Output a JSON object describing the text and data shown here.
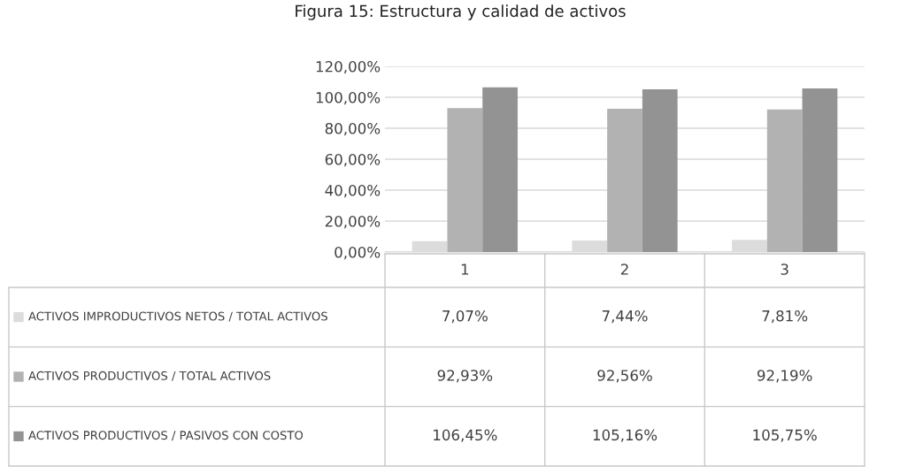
{
  "chart_data": {
    "type": "bar",
    "title": "Figura 15: Estructura y calidad de activos",
    "categories": [
      "1",
      "2",
      "3"
    ],
    "series": [
      {
        "name": "ACTIVOS IMPRODUCTIVOS NETOS / TOTAL ACTIVOS",
        "color": "#dcdcdc",
        "values": [
          7.07,
          7.44,
          7.81
        ],
        "value_labels": [
          "7,07%",
          "7,44%",
          "7,81%"
        ]
      },
      {
        "name": "ACTIVOS PRODUCTIVOS / TOTAL ACTIVOS",
        "color": "#b2b2b2",
        "values": [
          92.93,
          92.56,
          92.19
        ],
        "value_labels": [
          "92,93%",
          "92,56%",
          "92,19%"
        ]
      },
      {
        "name": "ACTIVOS PRODUCTIVOS / PASIVOS CON COSTO",
        "color": "#939393",
        "values": [
          106.45,
          105.16,
          105.75
        ],
        "value_labels": [
          "106,45%",
          "105,16%",
          "105,75%"
        ]
      }
    ],
    "ylim": [
      0,
      120
    ],
    "yticks": [
      {
        "value": 0,
        "label": "0,00%"
      },
      {
        "value": 20,
        "label": "20,00%"
      },
      {
        "value": 40,
        "label": "40,00%"
      },
      {
        "value": 60,
        "label": "60,00%"
      },
      {
        "value": 80,
        "label": "80,00%"
      },
      {
        "value": 100,
        "label": "100,00%"
      },
      {
        "value": 120,
        "label": "120,00%"
      }
    ],
    "grid": "y",
    "legend": "bottom"
  }
}
